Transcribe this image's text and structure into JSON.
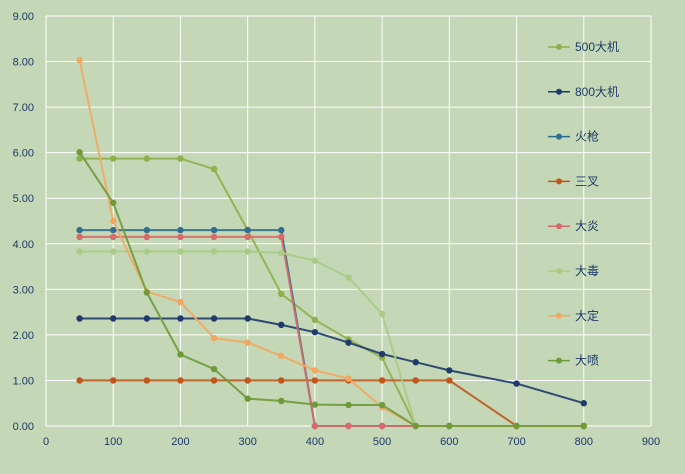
{
  "chart_data": {
    "type": "scatter",
    "title": "",
    "xlabel": "",
    "ylabel": "",
    "xlim": [
      0,
      900
    ],
    "ylim": [
      0,
      9
    ],
    "x_ticks": [
      0,
      100,
      200,
      300,
      400,
      500,
      600,
      700,
      800,
      900
    ],
    "y_ticks": [
      0,
      1,
      2,
      3,
      4,
      5,
      6,
      7,
      8,
      9
    ],
    "x_tick_labels": [
      "0",
      "100",
      "200",
      "300",
      "400",
      "500",
      "600",
      "700",
      "800",
      "900"
    ],
    "y_tick_labels": [
      "0.00",
      "1.00",
      "2.00",
      "3.00",
      "4.00",
      "5.00",
      "6.00",
      "7.00",
      "8.00",
      "9.00"
    ],
    "grid": true,
    "legend_position": "right",
    "series": [
      {
        "name": "500大机",
        "color": "#8fb04a",
        "x": [
          50,
          100,
          150,
          200,
          250,
          300,
          350,
          400,
          450,
          500,
          550,
          600,
          700,
          800
        ],
        "y": [
          5.87,
          5.87,
          5.87,
          5.87,
          5.64,
          4.3,
          2.9,
          2.33,
          1.9,
          1.5,
          0,
          0,
          0,
          0
        ]
      },
      {
        "name": "800大机",
        "color": "#1f3a6b",
        "x": [
          50,
          100,
          150,
          200,
          250,
          300,
          350,
          400,
          450,
          500,
          550,
          600,
          700,
          800
        ],
        "y": [
          2.36,
          2.36,
          2.36,
          2.36,
          2.36,
          2.36,
          2.22,
          2.06,
          1.83,
          1.58,
          1.4,
          1.22,
          0.93,
          0.5
        ]
      },
      {
        "name": "火枪",
        "color": "#2e6e8e",
        "x": [
          50,
          100,
          150,
          200,
          250,
          300,
          350,
          400,
          450,
          500,
          550,
          600,
          700,
          800
        ],
        "y": [
          4.3,
          4.3,
          4.3,
          4.3,
          4.3,
          4.3,
          4.3,
          0,
          0,
          0,
          0,
          0,
          0,
          0
        ]
      },
      {
        "name": "三叉",
        "color": "#c0561c",
        "x": [
          50,
          100,
          150,
          200,
          250,
          300,
          350,
          400,
          450,
          500,
          550,
          600,
          700,
          800
        ],
        "y": [
          1.0,
          1.0,
          1.0,
          1.0,
          1.0,
          1.0,
          1.0,
          1.0,
          1.0,
          1.0,
          1.0,
          1.0,
          0,
          0
        ]
      },
      {
        "name": "大炎",
        "color": "#d76a6a",
        "x": [
          50,
          100,
          150,
          200,
          250,
          300,
          350,
          400,
          450,
          500,
          550,
          600,
          700,
          800
        ],
        "y": [
          4.15,
          4.15,
          4.15,
          4.15,
          4.15,
          4.15,
          4.15,
          0,
          0,
          0,
          0,
          0,
          0,
          0
        ]
      },
      {
        "name": "大毒",
        "color": "#a9cc85",
        "x": [
          50,
          100,
          150,
          200,
          250,
          300,
          350,
          400,
          450,
          500,
          550,
          600,
          700,
          800
        ],
        "y": [
          3.83,
          3.83,
          3.83,
          3.83,
          3.83,
          3.83,
          3.8,
          3.63,
          3.26,
          2.46,
          0,
          0,
          0,
          0
        ]
      },
      {
        "name": "大定",
        "color": "#f4a760",
        "x": [
          50,
          100,
          150,
          200,
          250,
          300,
          350,
          400,
          450,
          500,
          550,
          600,
          700,
          800
        ],
        "y": [
          8.03,
          4.5,
          2.95,
          2.72,
          1.93,
          1.83,
          1.54,
          1.22,
          1.04,
          0.41,
          0,
          0,
          0,
          0
        ]
      },
      {
        "name": "大喷",
        "color": "#6f9a3a",
        "x": [
          50,
          100,
          150,
          200,
          250,
          300,
          350,
          400,
          450,
          500,
          550,
          600,
          700,
          800
        ],
        "y": [
          6.01,
          4.9,
          2.93,
          1.57,
          1.25,
          0.6,
          0.55,
          0.47,
          0.46,
          0.46,
          0,
          0,
          0,
          0
        ]
      }
    ]
  }
}
